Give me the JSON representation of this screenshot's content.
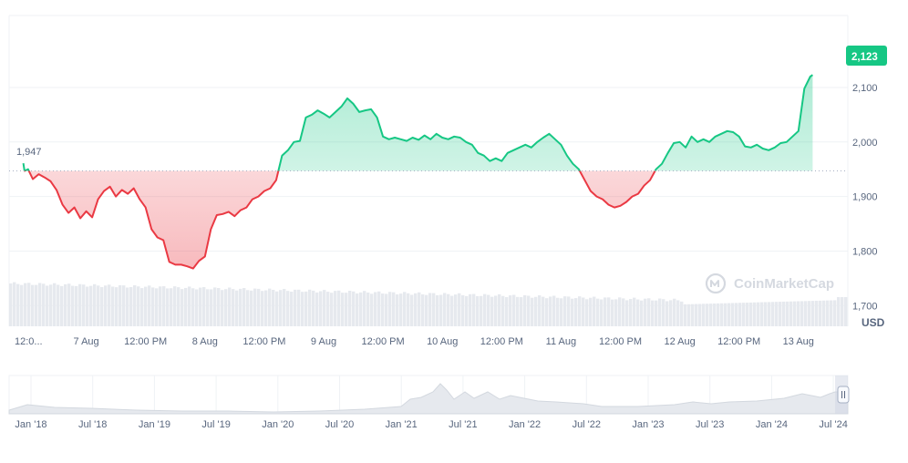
{
  "colors": {
    "up": "#16c784",
    "down": "#ea3943",
    "grid": "#eff2f5",
    "axis_text": "#58667e",
    "volume": "#e6e9ee",
    "navigator": "#dfe3e8",
    "reference_line": "#a6b0c3"
  },
  "watermark": "CoinMarketCap",
  "currency_label": "USD",
  "chart_data": [
    {
      "type": "area",
      "reference_value": 1947,
      "reference_label": "1,947",
      "last_value": 2123,
      "last_label": "2,123",
      "ylim": [
        1662,
        2232
      ],
      "y_ticks": [
        {
          "value": 2100,
          "label": "2,100"
        },
        {
          "value": 2000,
          "label": "2,000"
        },
        {
          "value": 1900,
          "label": "1,900"
        },
        {
          "value": 1800,
          "label": "1,800"
        },
        {
          "value": 1700,
          "label": "1,700"
        }
      ],
      "x_ticks": [
        {
          "t": 0.0,
          "label": "12:0..."
        },
        {
          "t": 0.5,
          "label": "7 Aug"
        },
        {
          "t": 1.0,
          "label": "12:00 PM"
        },
        {
          "t": 1.5,
          "label": "8 Aug"
        },
        {
          "t": 2.0,
          "label": "12:00 PM"
        },
        {
          "t": 2.5,
          "label": "9 Aug"
        },
        {
          "t": 3.0,
          "label": "12:00 PM"
        },
        {
          "t": 3.5,
          "label": "10 Aug"
        },
        {
          "t": 4.0,
          "label": "12:00 PM"
        },
        {
          "t": 4.5,
          "label": "11 Aug"
        },
        {
          "t": 5.0,
          "label": "12:00 PM"
        },
        {
          "t": 5.5,
          "label": "12 Aug"
        },
        {
          "t": 6.0,
          "label": "12:00 PM"
        },
        {
          "t": 6.5,
          "label": "13 Aug"
        }
      ],
      "x_range": [
        0,
        7.05
      ],
      "series": [
        {
          "values": [
            [
              -0.03,
              1961
            ],
            [
              -0.02,
              1947
            ],
            [
              0.01,
              1950
            ],
            [
              0.05,
              1932
            ],
            [
              0.1,
              1941
            ],
            [
              0.15,
              1935
            ],
            [
              0.2,
              1928
            ],
            [
              0.25,
              1912
            ],
            [
              0.3,
              1885
            ],
            [
              0.35,
              1870
            ],
            [
              0.4,
              1880
            ],
            [
              0.45,
              1860
            ],
            [
              0.5,
              1873
            ],
            [
              0.55,
              1862
            ],
            [
              0.6,
              1895
            ],
            [
              0.65,
              1910
            ],
            [
              0.7,
              1918
            ],
            [
              0.75,
              1900
            ],
            [
              0.8,
              1912
            ],
            [
              0.85,
              1905
            ],
            [
              0.9,
              1915
            ],
            [
              0.95,
              1895
            ],
            [
              1.0,
              1880
            ],
            [
              1.05,
              1840
            ],
            [
              1.1,
              1825
            ],
            [
              1.15,
              1820
            ],
            [
              1.2,
              1780
            ],
            [
              1.25,
              1775
            ],
            [
              1.3,
              1775
            ],
            [
              1.35,
              1772
            ],
            [
              1.4,
              1768
            ],
            [
              1.45,
              1782
            ],
            [
              1.5,
              1790
            ],
            [
              1.55,
              1840
            ],
            [
              1.6,
              1866
            ],
            [
              1.65,
              1868
            ],
            [
              1.7,
              1872
            ],
            [
              1.75,
              1864
            ],
            [
              1.8,
              1875
            ],
            [
              1.85,
              1880
            ],
            [
              1.9,
              1895
            ],
            [
              1.95,
              1900
            ],
            [
              2.0,
              1910
            ],
            [
              2.05,
              1915
            ],
            [
              2.1,
              1930
            ],
            [
              2.15,
              1975
            ],
            [
              2.2,
              1985
            ],
            [
              2.25,
              2000
            ],
            [
              2.3,
              2002
            ],
            [
              2.35,
              2045
            ],
            [
              2.4,
              2050
            ],
            [
              2.45,
              2058
            ],
            [
              2.5,
              2052
            ],
            [
              2.55,
              2045
            ],
            [
              2.6,
              2055
            ],
            [
              2.65,
              2065
            ],
            [
              2.7,
              2080
            ],
            [
              2.75,
              2070
            ],
            [
              2.8,
              2055
            ],
            [
              2.85,
              2058
            ],
            [
              2.9,
              2060
            ],
            [
              2.95,
              2045
            ],
            [
              3.0,
              2010
            ],
            [
              3.05,
              2005
            ],
            [
              3.1,
              2008
            ],
            [
              3.15,
              2005
            ],
            [
              3.2,
              2002
            ],
            [
              3.25,
              2008
            ],
            [
              3.3,
              2004
            ],
            [
              3.35,
              2012
            ],
            [
              3.4,
              2005
            ],
            [
              3.45,
              2015
            ],
            [
              3.5,
              2008
            ],
            [
              3.55,
              2005
            ],
            [
              3.6,
              2010
            ],
            [
              3.65,
              2008
            ],
            [
              3.7,
              2000
            ],
            [
              3.75,
              1995
            ],
            [
              3.8,
              1980
            ],
            [
              3.85,
              1975
            ],
            [
              3.9,
              1965
            ],
            [
              3.95,
              1970
            ],
            [
              4.0,
              1965
            ],
            [
              4.05,
              1980
            ],
            [
              4.1,
              1985
            ],
            [
              4.15,
              1990
            ],
            [
              4.2,
              1995
            ],
            [
              4.25,
              1990
            ],
            [
              4.3,
              2000
            ],
            [
              4.35,
              2008
            ],
            [
              4.4,
              2015
            ],
            [
              4.45,
              2005
            ],
            [
              4.5,
              1995
            ],
            [
              4.55,
              1975
            ],
            [
              4.6,
              1960
            ],
            [
              4.65,
              1950
            ],
            [
              4.7,
              1930
            ],
            [
              4.75,
              1910
            ],
            [
              4.8,
              1900
            ],
            [
              4.85,
              1895
            ],
            [
              4.9,
              1885
            ],
            [
              4.95,
              1880
            ],
            [
              5.0,
              1883
            ],
            [
              5.05,
              1890
            ],
            [
              5.1,
              1900
            ],
            [
              5.15,
              1905
            ],
            [
              5.2,
              1920
            ],
            [
              5.25,
              1930
            ],
            [
              5.3,
              1950
            ],
            [
              5.35,
              1960
            ],
            [
              5.4,
              1980
            ],
            [
              5.45,
              1998
            ],
            [
              5.5,
              2000
            ],
            [
              5.55,
              1990
            ],
            [
              5.6,
              2010
            ],
            [
              5.65,
              2000
            ],
            [
              5.7,
              2005
            ],
            [
              5.75,
              2000
            ],
            [
              5.8,
              2010
            ],
            [
              5.85,
              2015
            ],
            [
              5.9,
              2020
            ],
            [
              5.95,
              2018
            ],
            [
              6.0,
              2010
            ],
            [
              6.05,
              1992
            ],
            [
              6.1,
              1990
            ],
            [
              6.15,
              1995
            ],
            [
              6.2,
              1988
            ],
            [
              6.25,
              1985
            ],
            [
              6.3,
              1990
            ],
            [
              6.35,
              1998
            ],
            [
              6.4,
              2000
            ],
            [
              6.45,
              2010
            ],
            [
              6.5,
              2020
            ],
            [
              6.55,
              2098
            ],
            [
              6.6,
              2120
            ],
            [
              6.62,
              2123
            ]
          ]
        }
      ]
    },
    {
      "type": "area",
      "x_ticks": [
        {
          "label": "Jan '18"
        },
        {
          "label": "Jul '18"
        },
        {
          "label": "Jan '19"
        },
        {
          "label": "Jul '19"
        },
        {
          "label": "Jan '20"
        },
        {
          "label": "Jul '20"
        },
        {
          "label": "Jan '21"
        },
        {
          "label": "Jul '21"
        },
        {
          "label": "Jan '22"
        },
        {
          "label": "Jul '22"
        },
        {
          "label": "Jan '23"
        },
        {
          "label": "Jul '23"
        },
        {
          "label": "Jan '24"
        },
        {
          "label": "Jul '24"
        }
      ]
    }
  ]
}
